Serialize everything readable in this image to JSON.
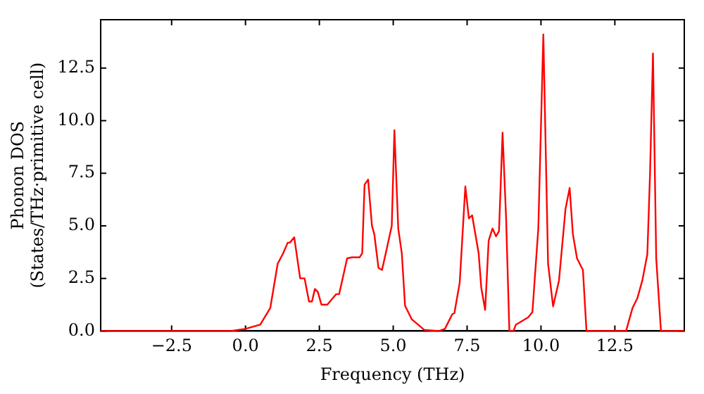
{
  "chart_data": {
    "type": "line",
    "xlabel": "Frequency (THz)",
    "ylabel": "Phonon DOS\n(States/THz·primitive cell)",
    "xlim": [
      -4.9,
      14.85
    ],
    "ylim": [
      0,
      14.8
    ],
    "xticks": [
      {
        "value": -2.5,
        "label": "−2.5"
      },
      {
        "value": 0,
        "label": "0.0"
      },
      {
        "value": 2.5,
        "label": "2.5"
      },
      {
        "value": 5,
        "label": "5.0"
      },
      {
        "value": 7.5,
        "label": "7.5"
      },
      {
        "value": 10,
        "label": "10.0"
      },
      {
        "value": 12.5,
        "label": "12.5"
      }
    ],
    "yticks": [
      {
        "value": 0,
        "label": "0.0"
      },
      {
        "value": 2.5,
        "label": "2.5"
      },
      {
        "value": 5,
        "label": "5.0"
      },
      {
        "value": 7.5,
        "label": "7.5"
      },
      {
        "value": 10,
        "label": "10.0"
      },
      {
        "value": 12.5,
        "label": "12.5"
      }
    ],
    "grid": false,
    "legend": false,
    "marker": "none",
    "line_style": "solid",
    "series": [
      {
        "color": "#ff0000",
        "x": [
          -4.9,
          -0.5,
          0,
          0.5,
          0.84,
          1.09,
          1.26,
          1.43,
          1.5,
          1.65,
          1.85,
          2.0,
          2.15,
          2.25,
          2.35,
          2.45,
          2.57,
          2.77,
          3.07,
          3.17,
          3.44,
          3.6,
          3.86,
          3.95,
          4.03,
          4.15,
          4.28,
          4.36,
          4.5,
          4.62,
          4.78,
          4.95,
          5.04,
          5.17,
          5.29,
          5.4,
          5.63,
          6.05,
          6.55,
          6.75,
          7.0,
          7.07,
          7.25,
          7.44,
          7.56,
          7.67,
          7.89,
          7.98,
          8.11,
          8.23,
          8.36,
          8.48,
          8.58,
          8.7,
          8.82,
          8.93,
          9.07,
          9.15,
          9.57,
          9.71,
          9.91,
          10.08,
          10.24,
          10.41,
          10.61,
          10.83,
          10.97,
          11.08,
          11.22,
          11.42,
          11.54,
          12.88,
          13.1,
          13.26,
          13.43,
          13.6,
          13.69,
          13.79,
          13.9,
          14.06,
          14.85
        ],
        "values": [
          0,
          0,
          0.1,
          0.3,
          1.1,
          3.2,
          3.65,
          4.2,
          4.2,
          4.45,
          2.5,
          2.5,
          1.4,
          1.4,
          2.0,
          1.85,
          1.25,
          1.25,
          1.75,
          1.75,
          3.45,
          3.5,
          3.5,
          3.7,
          6.95,
          7.2,
          5.0,
          4.6,
          3.0,
          2.9,
          3.9,
          5.0,
          9.55,
          4.87,
          3.7,
          1.2,
          0.55,
          0.05,
          0,
          0.1,
          0.8,
          0.85,
          2.3,
          6.87,
          5.35,
          5.5,
          3.7,
          2.05,
          1.0,
          4.3,
          4.87,
          4.5,
          4.75,
          9.43,
          5.35,
          0,
          0,
          0.3,
          0.65,
          0.9,
          4.87,
          14.1,
          3.2,
          1.17,
          2.4,
          5.8,
          6.8,
          4.6,
          3.45,
          2.9,
          0,
          0,
          1.1,
          1.55,
          2.4,
          3.65,
          7.45,
          13.2,
          3.45,
          0,
          0
        ]
      }
    ]
  }
}
